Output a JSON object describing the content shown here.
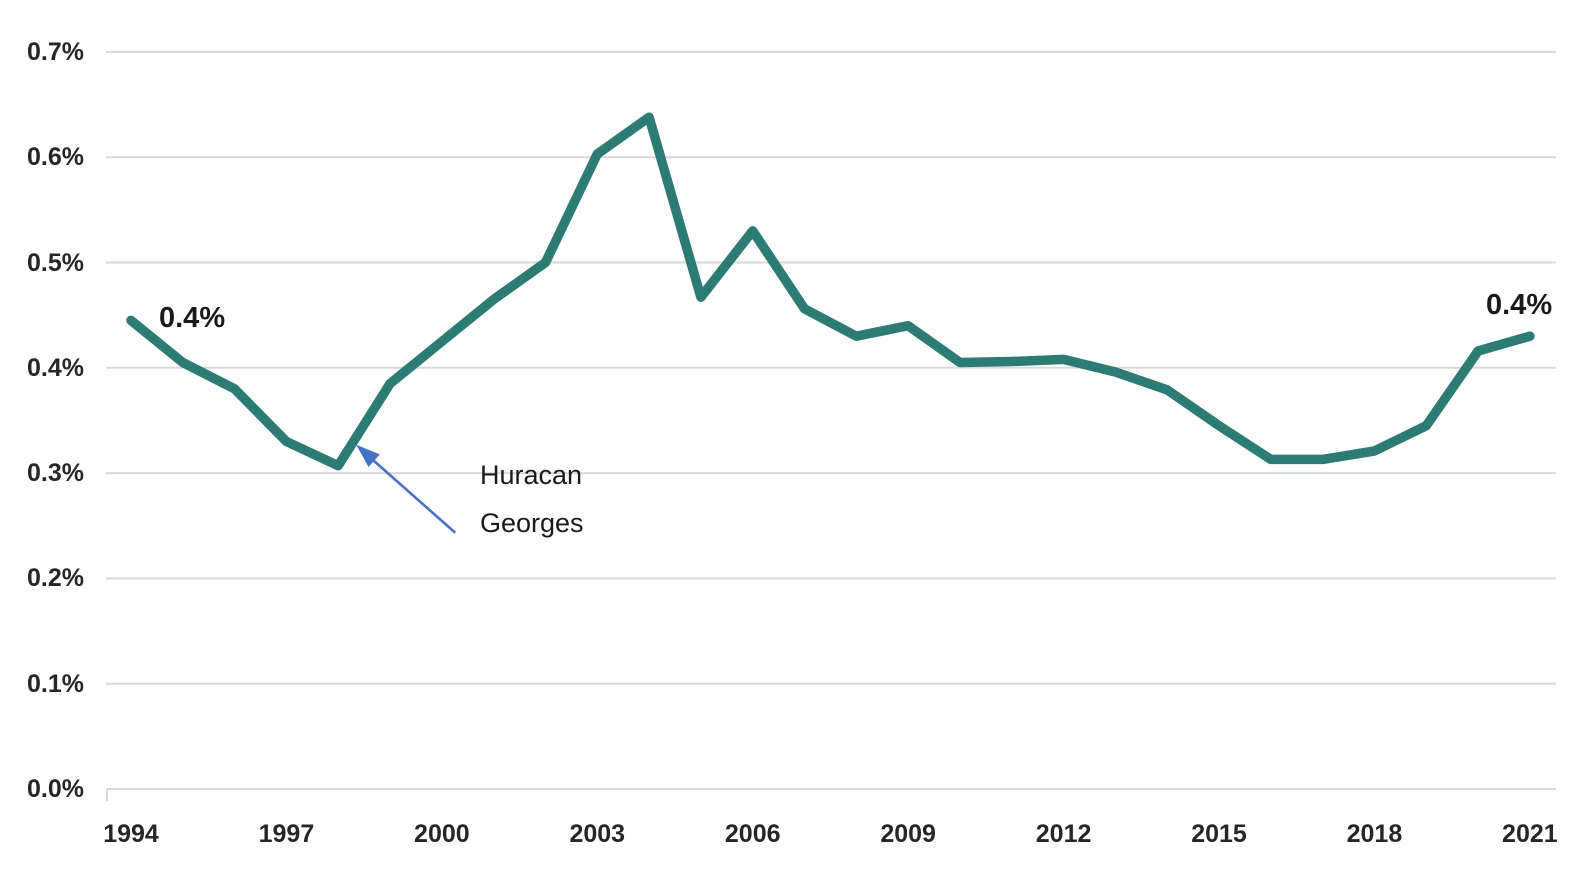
{
  "chart_data": {
    "type": "line",
    "title": "",
    "xlabel": "",
    "ylabel": "",
    "x": [
      1994,
      1995,
      1996,
      1997,
      1998,
      1999,
      2000,
      2001,
      2002,
      2003,
      2004,
      2005,
      2006,
      2007,
      2008,
      2009,
      2010,
      2011,
      2012,
      2013,
      2014,
      2015,
      2016,
      2017,
      2018,
      2019,
      2020,
      2021
    ],
    "values_percent": [
      0.445,
      0.405,
      0.38,
      0.33,
      0.307,
      0.385,
      0.425,
      0.465,
      0.5,
      0.603,
      0.638,
      0.467,
      0.53,
      0.456,
      0.43,
      0.44,
      0.405,
      0.406,
      0.408,
      0.396,
      0.379,
      0.345,
      0.313,
      0.313,
      0.321,
      0.345,
      0.416,
      0.43
    ],
    "x_tick_labels": [
      "1994",
      "1997",
      "2000",
      "2003",
      "2006",
      "2009",
      "2012",
      "2015",
      "2018",
      "2021"
    ],
    "y_tick_labels": [
      "0.0%",
      "0.1%",
      "0.2%",
      "0.3%",
      "0.4%",
      "0.5%",
      "0.6%",
      "0.7%"
    ],
    "ylim_percent": [
      0.0,
      0.7
    ],
    "grid": "horizontal",
    "legend": "none",
    "annotations": {
      "start_label": "0.4%",
      "end_label": "0.4%",
      "callout_line1": "Huracan",
      "callout_line2": "Georges",
      "arrow_target_year": 1998
    },
    "colors": {
      "line": "#2C7B74",
      "gridline": "#D9D9D9",
      "tick_text": "#262626",
      "arrow": "#4472C4"
    }
  }
}
